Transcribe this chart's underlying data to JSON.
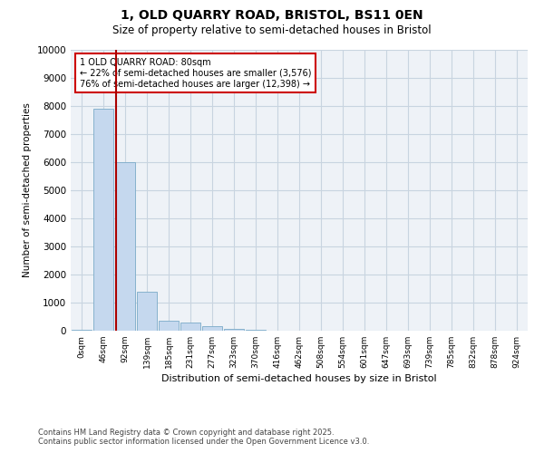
{
  "title_line1": "1, OLD QUARRY ROAD, BRISTOL, BS11 0EN",
  "title_line2": "Size of property relative to semi-detached houses in Bristol",
  "xlabel": "Distribution of semi-detached houses by size in Bristol",
  "ylabel": "Number of semi-detached properties",
  "bar_color": "#c5d8ee",
  "bar_edge_color": "#7aaac8",
  "categories": [
    "0sqm",
    "46sqm",
    "92sqm",
    "139sqm",
    "185sqm",
    "231sqm",
    "277sqm",
    "323sqm",
    "370sqm",
    "416sqm",
    "462sqm",
    "508sqm",
    "554sqm",
    "601sqm",
    "647sqm",
    "693sqm",
    "739sqm",
    "785sqm",
    "832sqm",
    "878sqm",
    "924sqm"
  ],
  "values": [
    20,
    7900,
    6000,
    1380,
    350,
    280,
    150,
    70,
    30,
    5,
    2,
    1,
    0,
    0,
    0,
    0,
    0,
    0,
    0,
    0,
    0
  ],
  "ylim": [
    0,
    10000
  ],
  "yticks": [
    0,
    1000,
    2000,
    3000,
    4000,
    5000,
    6000,
    7000,
    8000,
    9000,
    10000
  ],
  "property_line_x": 1.6,
  "property_line_color": "#aa0000",
  "annotation_title": "1 OLD QUARRY ROAD: 80sqm",
  "annotation_line1": "← 22% of semi-detached houses are smaller (3,576)",
  "annotation_line2": "76% of semi-detached houses are larger (12,398) →",
  "annotation_box_color": "#cc0000",
  "footer_line1": "Contains HM Land Registry data © Crown copyright and database right 2025.",
  "footer_line2": "Contains public sector information licensed under the Open Government Licence v3.0.",
  "background_color": "#eef2f7",
  "grid_color": "#c8d4e0",
  "title_fontsize": 10,
  "subtitle_fontsize": 8.5
}
